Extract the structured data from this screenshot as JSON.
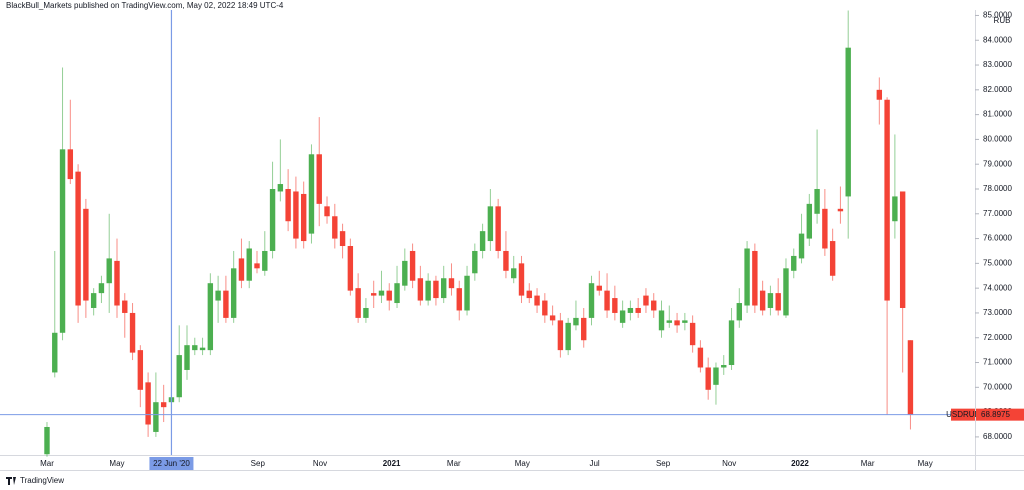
{
  "chart_data": {
    "type": "candlestick",
    "header": "BlackBull_Markets published on TradingView.com, May 02, 2022 18:49 UTC-4",
    "currency": "RUB",
    "brand": "TradingView",
    "series": [
      {
        "name": "USDRUB",
        "up_color": "#4caf50",
        "down_color": "#f44336",
        "x": [
          0,
          1,
          2,
          3,
          4,
          5,
          6,
          7,
          8,
          9,
          10,
          11,
          12,
          13,
          14,
          15,
          16,
          17,
          18,
          19,
          20,
          21,
          22,
          23,
          24,
          25,
          26,
          27,
          28,
          29,
          30,
          31,
          32,
          33,
          34,
          35,
          36,
          37,
          38,
          39,
          40,
          41,
          42,
          43,
          44,
          45,
          46,
          47,
          48,
          49,
          50,
          51,
          52,
          53,
          54,
          55,
          56,
          57,
          58,
          59,
          60,
          61,
          62,
          63,
          64,
          65,
          66,
          67,
          68,
          69,
          70,
          71,
          72,
          73,
          74,
          75,
          76,
          77,
          78,
          79,
          80,
          81,
          82,
          83,
          84,
          85,
          86,
          87,
          88,
          89,
          90,
          91,
          92,
          93,
          94,
          95,
          96,
          97,
          98,
          99,
          100,
          101,
          102,
          103,
          107,
          108,
          109,
          110,
          111
        ],
        "open": [
          67.3,
          70.6,
          72.2,
          79.6,
          78.7,
          77.2,
          73.2,
          73.8,
          74.2,
          75.1,
          73.5,
          73.0,
          71.5,
          70.2,
          68.2,
          69.4,
          69.4,
          69.6,
          70.7,
          71.5,
          71.5,
          71.5,
          73.5,
          73.9,
          72.8,
          75.2,
          74.3,
          75.0,
          74.7,
          75.5,
          77.9,
          78.0,
          77.9,
          77.8,
          76.2,
          79.4,
          77.3,
          76.9,
          76.3,
          75.7,
          74.0,
          72.8,
          73.8,
          73.7,
          73.9,
          73.4,
          74.1,
          75.5,
          74.4,
          73.5,
          74.3,
          73.6,
          74.4,
          74.0,
          73.1,
          74.6,
          75.5,
          75.9,
          77.3,
          75.5,
          74.4,
          75.0,
          73.9,
          73.7,
          73.5,
          72.9,
          72.7,
          71.5,
          72.5,
          72.8,
          72.8,
          74.1,
          73.9,
          73.6,
          72.6,
          73.0,
          73.2,
          73.7,
          73.5,
          72.3,
          72.6,
          72.7,
          72.6,
          72.6,
          71.6,
          70.8,
          70.1,
          70.8,
          70.9,
          72.7,
          73.3,
          75.5,
          73.9,
          73.2,
          73.8,
          72.9,
          74.7,
          75.2,
          76.0,
          77.0,
          77.2,
          75.9,
          77.2,
          77.7,
          82.0,
          81.6,
          76.7,
          77.9,
          71.9
        ],
        "high": [
          68.6,
          75.5,
          82.9,
          81.6,
          79.0,
          77.6,
          74.0,
          74.5,
          77.0,
          76.0,
          73.8,
          73.4,
          71.7,
          70.6,
          70.6,
          70.1,
          70.0,
          72.5,
          72.5,
          72.0,
          72.0,
          74.6,
          74.5,
          74.5,
          75.5,
          76.0,
          75.9,
          75.5,
          76.3,
          79.1,
          80.0,
          78.8,
          78.5,
          78.3,
          79.8,
          80.9,
          77.7,
          77.4,
          76.6,
          76.0,
          74.6,
          73.6,
          74.3,
          74.7,
          74.2,
          74.9,
          75.6,
          75.8,
          74.9,
          74.6,
          74.5,
          74.9,
          75.0,
          74.3,
          74.9,
          75.8,
          76.6,
          78.0,
          77.6,
          76.3,
          75.3,
          75.3,
          74.2,
          74.0,
          73.8,
          73.3,
          73.0,
          72.8,
          73.5,
          73.2,
          74.5,
          74.7,
          74.6,
          74.1,
          73.5,
          73.5,
          73.6,
          74.0,
          73.8,
          73.5,
          73.3,
          73.0,
          73.0,
          72.9,
          71.9,
          71.2,
          71.0,
          71.3,
          73.2,
          74.0,
          75.9,
          75.8,
          74.3,
          74.1,
          74.4,
          75.2,
          75.6,
          77.0,
          77.8,
          80.4,
          78.0,
          76.4,
          78.1,
          85.2,
          82.5,
          81.7,
          80.2,
          77.9,
          71.9
        ],
        "low": [
          67.2,
          70.4,
          71.9,
          78.2,
          72.6,
          72.8,
          72.9,
          73.4,
          73.0,
          72.8,
          72.0,
          71.1,
          69.2,
          68.0,
          68.0,
          68.6,
          69.0,
          69.4,
          70.3,
          71.3,
          71.3,
          71.3,
          72.6,
          72.6,
          72.6,
          74.0,
          74.0,
          74.6,
          74.5,
          75.2,
          77.5,
          76.3,
          75.6,
          75.6,
          75.8,
          76.5,
          76.6,
          75.6,
          75.2,
          73.7,
          72.6,
          72.6,
          73.2,
          73.4,
          73.1,
          73.2,
          73.9,
          74.0,
          73.3,
          73.3,
          73.3,
          73.4,
          73.7,
          72.7,
          72.9,
          74.3,
          75.2,
          75.5,
          75.2,
          74.4,
          74.2,
          73.4,
          73.4,
          73.0,
          72.6,
          72.5,
          71.2,
          71.3,
          72.3,
          71.6,
          72.5,
          73.7,
          72.8,
          72.7,
          72.4,
          72.7,
          72.8,
          73.0,
          72.8,
          72.0,
          72.4,
          72.2,
          72.3,
          71.4,
          70.6,
          69.5,
          69.3,
          70.5,
          70.7,
          72.4,
          73.0,
          73.0,
          72.9,
          72.9,
          72.9,
          72.8,
          74.4,
          75.0,
          75.7,
          76.6,
          75.3,
          74.3,
          76.6,
          76.0,
          80.6,
          68.9,
          76.0,
          70.6,
          68.3
        ],
        "close": [
          68.4,
          72.2,
          79.6,
          78.4,
          73.3,
          73.5,
          73.8,
          74.2,
          75.2,
          73.3,
          73.0,
          71.4,
          69.9,
          68.5,
          69.4,
          69.2,
          69.6,
          71.3,
          71.7,
          71.7,
          71.6,
          74.2,
          73.9,
          72.8,
          74.8,
          74.3,
          75.6,
          74.8,
          75.5,
          78.0,
          78.2,
          76.7,
          76.0,
          75.9,
          79.4,
          77.4,
          76.9,
          76.0,
          75.7,
          73.9,
          72.8,
          73.2,
          73.7,
          73.9,
          73.5,
          74.2,
          75.1,
          74.3,
          73.5,
          74.3,
          73.6,
          74.4,
          74.0,
          73.1,
          74.5,
          75.5,
          76.3,
          77.3,
          75.5,
          74.7,
          74.8,
          73.7,
          73.6,
          73.3,
          72.9,
          72.7,
          71.5,
          72.6,
          72.8,
          71.9,
          74.2,
          73.9,
          73.1,
          73.0,
          73.1,
          73.2,
          73.0,
          73.3,
          73.1,
          73.1,
          72.7,
          72.5,
          72.7,
          71.7,
          70.8,
          69.9,
          70.8,
          70.9,
          72.7,
          73.4,
          75.6,
          73.3,
          73.1,
          73.8,
          73.1,
          74.8,
          75.3,
          76.2,
          77.4,
          78.0,
          75.6,
          74.5,
          77.1,
          83.7,
          81.6,
          73.5,
          77.7,
          73.2,
          68.8975
        ]
      }
    ],
    "price_line_color": "#7b9be6",
    "crosshair": {
      "x": 16,
      "label": "22 Jun '20"
    },
    "xlim": [
      -6.04,
      119.3
    ],
    "ylim": [
      67.27,
      85.22
    ],
    "xticks": [
      {
        "value": 0,
        "label": "Mar"
      },
      {
        "value": 9,
        "label": "May"
      },
      {
        "value": 27.1,
        "label": "Sep"
      },
      {
        "value": 35.1,
        "label": "Nov"
      },
      {
        "value": 44.3,
        "label": "2021"
      },
      {
        "value": 52.3,
        "label": "Mar"
      },
      {
        "value": 61.1,
        "label": "May"
      },
      {
        "value": 70.4,
        "label": "Jul"
      },
      {
        "value": 79.2,
        "label": "Sep"
      },
      {
        "value": 87.7,
        "label": "Nov"
      },
      {
        "value": 96.8,
        "label": "2022"
      },
      {
        "value": 105.5,
        "label": "Mar"
      },
      {
        "value": 112.9,
        "label": "May"
      }
    ],
    "yticks": [
      {
        "value": 68,
        "label": "68.0000"
      },
      {
        "value": 69,
        "label": "69.0000"
      },
      {
        "value": 70,
        "label": "70.0000"
      },
      {
        "value": 71,
        "label": "71.0000"
      },
      {
        "value": 72,
        "label": "72.0000"
      },
      {
        "value": 73,
        "label": "73.0000"
      },
      {
        "value": 74,
        "label": "74.0000"
      },
      {
        "value": 75,
        "label": "75.0000"
      },
      {
        "value": 76,
        "label": "76.0000"
      },
      {
        "value": 77,
        "label": "77.0000"
      },
      {
        "value": 78,
        "label": "78.0000"
      },
      {
        "value": 79,
        "label": "79.0000"
      },
      {
        "value": 80,
        "label": "80.0000"
      },
      {
        "value": 81,
        "label": "81.0000"
      },
      {
        "value": 82,
        "label": "82.0000"
      },
      {
        "value": 83,
        "label": "83.0000"
      },
      {
        "value": 84,
        "label": "84.0000"
      },
      {
        "value": 85,
        "label": "85.0000"
      }
    ]
  }
}
